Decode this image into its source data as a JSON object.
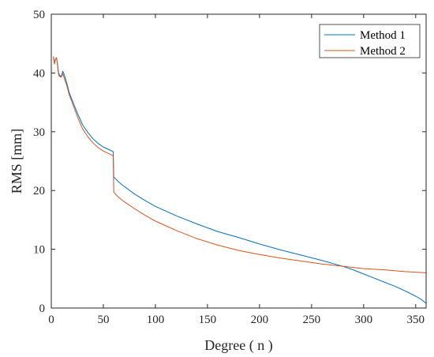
{
  "chart_data": {
    "type": "line",
    "title": "",
    "xlabel": "Degree ( n )",
    "ylabel": "RMS [mm]",
    "xlim": [
      0,
      360
    ],
    "ylim": [
      0,
      50
    ],
    "xticks": [
      "0",
      "50",
      "100",
      "150",
      "200",
      "250",
      "300",
      "350"
    ],
    "yticks": [
      "0",
      "10",
      "20",
      "30",
      "40",
      "50"
    ],
    "grid": false,
    "legend_position": "top-right",
    "series": [
      {
        "name": "Method 1",
        "color": "#0072BD",
        "x": [
          2,
          3,
          4,
          5,
          6,
          7,
          8,
          9,
          10,
          11,
          12,
          13,
          15,
          17,
          20,
          25,
          30,
          35,
          40,
          45,
          50,
          55,
          59.5,
          60,
          65,
          70,
          80,
          90,
          100,
          120,
          140,
          160,
          180,
          200,
          220,
          240,
          260,
          280,
          290,
          300,
          310,
          320,
          330,
          340,
          350,
          355,
          358,
          360
        ],
        "y": [
          42.8,
          41.8,
          42.3,
          42.6,
          41.5,
          40.0,
          39.6,
          39.4,
          39.6,
          40.3,
          39.9,
          39.4,
          38.2,
          36.8,
          35.4,
          33.2,
          31.2,
          29.9,
          28.8,
          28.0,
          27.4,
          27.0,
          26.6,
          22.3,
          21.4,
          20.7,
          19.4,
          18.3,
          17.3,
          15.7,
          14.3,
          13.0,
          12.0,
          10.9,
          9.9,
          9.0,
          8.1,
          7.1,
          6.5,
          5.8,
          5.1,
          4.4,
          3.7,
          2.9,
          2.0,
          1.5,
          1.1,
          0.8
        ]
      },
      {
        "name": "Method 2",
        "color": "#D95319",
        "x": [
          2,
          3,
          4,
          5,
          6,
          7,
          8,
          9,
          10,
          11,
          12,
          13,
          15,
          17,
          20,
          25,
          30,
          35,
          40,
          45,
          50,
          55,
          59.5,
          60,
          65,
          70,
          80,
          90,
          100,
          120,
          140,
          160,
          180,
          200,
          220,
          240,
          260,
          280,
          290,
          300,
          320,
          340,
          360
        ],
        "y": [
          42.8,
          41.5,
          42.3,
          42.6,
          41.3,
          39.7,
          39.4,
          39.3,
          39.4,
          39.9,
          39.4,
          38.8,
          37.8,
          36.4,
          35.0,
          32.6,
          30.5,
          29.2,
          28.1,
          27.3,
          26.7,
          26.3,
          25.9,
          19.7,
          18.8,
          18.1,
          16.9,
          15.8,
          14.8,
          13.2,
          11.8,
          10.7,
          9.8,
          9.1,
          8.5,
          8.0,
          7.5,
          7.1,
          6.9,
          6.7,
          6.5,
          6.2,
          6.0
        ]
      }
    ]
  }
}
